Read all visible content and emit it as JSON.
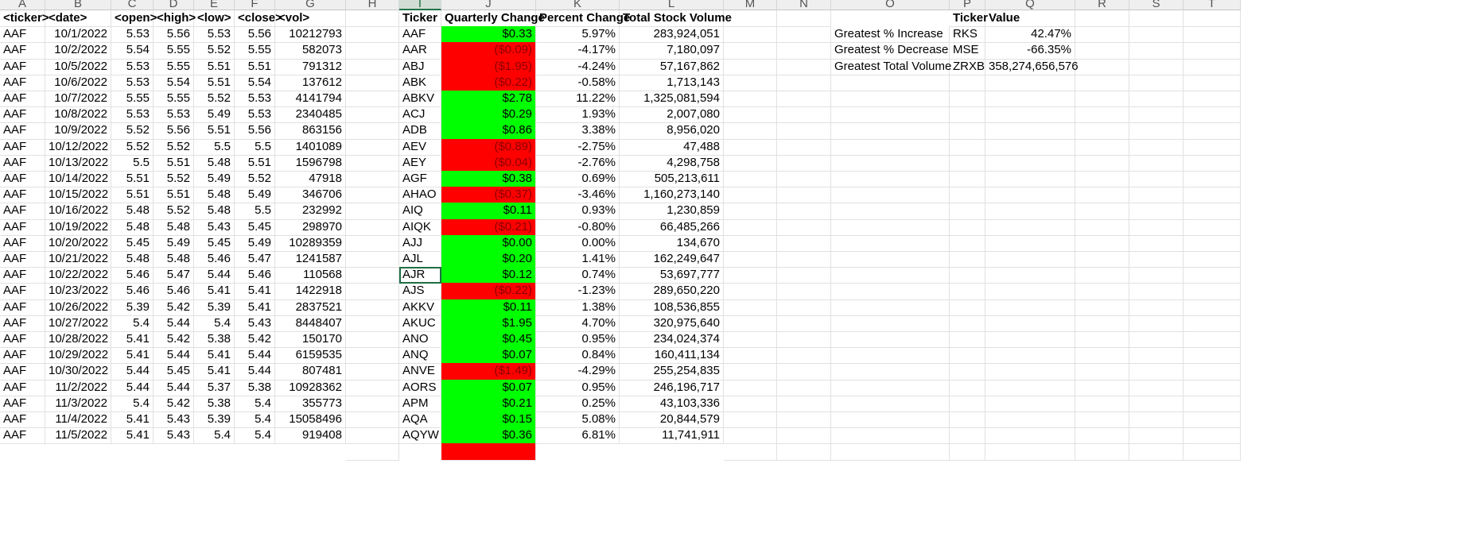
{
  "column_headers": [
    "A",
    "B",
    "C",
    "D",
    "E",
    "F",
    "G",
    "H",
    "I",
    "J",
    "K",
    "L",
    "M",
    "N",
    "O",
    "P",
    "Q",
    "R",
    "S",
    "T"
  ],
  "selected_column": "I",
  "raw_headers": [
    "<ticker>",
    "<date>",
    "<open>",
    "<high>",
    "<low>",
    "<close>",
    "<vol>"
  ],
  "raw_rows": [
    [
      "AAF",
      "10/1/2022",
      "5.53",
      "5.56",
      "5.53",
      "5.56",
      "10212793"
    ],
    [
      "AAF",
      "10/2/2022",
      "5.54",
      "5.55",
      "5.52",
      "5.55",
      "582073"
    ],
    [
      "AAF",
      "10/5/2022",
      "5.53",
      "5.55",
      "5.51",
      "5.51",
      "791312"
    ],
    [
      "AAF",
      "10/6/2022",
      "5.53",
      "5.54",
      "5.51",
      "5.54",
      "137612"
    ],
    [
      "AAF",
      "10/7/2022",
      "5.55",
      "5.55",
      "5.52",
      "5.53",
      "4141794"
    ],
    [
      "AAF",
      "10/8/2022",
      "5.53",
      "5.53",
      "5.49",
      "5.53",
      "2340485"
    ],
    [
      "AAF",
      "10/9/2022",
      "5.52",
      "5.56",
      "5.51",
      "5.56",
      "863156"
    ],
    [
      "AAF",
      "10/12/2022",
      "5.52",
      "5.52",
      "5.5",
      "5.5",
      "1401089"
    ],
    [
      "AAF",
      "10/13/2022",
      "5.5",
      "5.51",
      "5.48",
      "5.51",
      "1596798"
    ],
    [
      "AAF",
      "10/14/2022",
      "5.51",
      "5.52",
      "5.49",
      "5.52",
      "47918"
    ],
    [
      "AAF",
      "10/15/2022",
      "5.51",
      "5.51",
      "5.48",
      "5.49",
      "346706"
    ],
    [
      "AAF",
      "10/16/2022",
      "5.48",
      "5.52",
      "5.48",
      "5.5",
      "232992"
    ],
    [
      "AAF",
      "10/19/2022",
      "5.48",
      "5.48",
      "5.43",
      "5.45",
      "298970"
    ],
    [
      "AAF",
      "10/20/2022",
      "5.45",
      "5.49",
      "5.45",
      "5.49",
      "10289359"
    ],
    [
      "AAF",
      "10/21/2022",
      "5.48",
      "5.48",
      "5.46",
      "5.47",
      "1241587"
    ],
    [
      "AAF",
      "10/22/2022",
      "5.46",
      "5.47",
      "5.44",
      "5.46",
      "110568"
    ],
    [
      "AAF",
      "10/23/2022",
      "5.46",
      "5.46",
      "5.41",
      "5.41",
      "1422918"
    ],
    [
      "AAF",
      "10/26/2022",
      "5.39",
      "5.42",
      "5.39",
      "5.41",
      "2837521"
    ],
    [
      "AAF",
      "10/27/2022",
      "5.4",
      "5.44",
      "5.4",
      "5.43",
      "8448407"
    ],
    [
      "AAF",
      "10/28/2022",
      "5.41",
      "5.42",
      "5.38",
      "5.42",
      "150170"
    ],
    [
      "AAF",
      "10/29/2022",
      "5.41",
      "5.44",
      "5.41",
      "5.44",
      "6159535"
    ],
    [
      "AAF",
      "10/30/2022",
      "5.44",
      "5.45",
      "5.41",
      "5.44",
      "807481"
    ],
    [
      "AAF",
      "11/2/2022",
      "5.44",
      "5.44",
      "5.37",
      "5.38",
      "10928362"
    ],
    [
      "AAF",
      "11/3/2022",
      "5.4",
      "5.42",
      "5.38",
      "5.4",
      "355773"
    ],
    [
      "AAF",
      "11/4/2022",
      "5.41",
      "5.43",
      "5.39",
      "5.4",
      "15058496"
    ],
    [
      "AAF",
      "11/5/2022",
      "5.41",
      "5.43",
      "5.4",
      "5.4",
      "919408"
    ]
  ],
  "summary_headers": [
    "Ticker",
    "Quarterly Change",
    "Percent Change",
    "Total Stock Volume"
  ],
  "summary_rows": [
    {
      "ticker": "AAF",
      "change": "$0.33",
      "percent": "5.97%",
      "volume": "283,924,051",
      "status": "positive"
    },
    {
      "ticker": "AAR",
      "change": "($0.09)",
      "percent": "-4.17%",
      "volume": "7,180,097",
      "status": "negative"
    },
    {
      "ticker": "ABJ",
      "change": "($1.95)",
      "percent": "-4.24%",
      "volume": "57,167,862",
      "status": "negative"
    },
    {
      "ticker": "ABK",
      "change": "($0.22)",
      "percent": "-0.58%",
      "volume": "1,713,143",
      "status": "negative"
    },
    {
      "ticker": "ABKV",
      "change": "$2.78",
      "percent": "11.22%",
      "volume": "1,325,081,594",
      "status": "positive"
    },
    {
      "ticker": "ACJ",
      "change": "$0.29",
      "percent": "1.93%",
      "volume": "2,007,080",
      "status": "positive"
    },
    {
      "ticker": "ADB",
      "change": "$0.86",
      "percent": "3.38%",
      "volume": "8,956,020",
      "status": "positive"
    },
    {
      "ticker": "AEV",
      "change": "($0.89)",
      "percent": "-2.75%",
      "volume": "47,488",
      "status": "negative"
    },
    {
      "ticker": "AEY",
      "change": "($0.04)",
      "percent": "-2.76%",
      "volume": "4,298,758",
      "status": "negative"
    },
    {
      "ticker": "AGF",
      "change": "$0.38",
      "percent": "0.69%",
      "volume": "505,213,611",
      "status": "positive"
    },
    {
      "ticker": "AHAO",
      "change": "($0.37)",
      "percent": "-3.46%",
      "volume": "1,160,273,140",
      "status": "negative"
    },
    {
      "ticker": "AIQ",
      "change": "$0.11",
      "percent": "0.93%",
      "volume": "1,230,859",
      "status": "positive"
    },
    {
      "ticker": "AIQK",
      "change": "($0.21)",
      "percent": "-0.80%",
      "volume": "66,485,266",
      "status": "negative"
    },
    {
      "ticker": "AJJ",
      "change": "$0.00",
      "percent": "0.00%",
      "volume": "134,670",
      "status": "positive"
    },
    {
      "ticker": "AJL",
      "change": "$0.20",
      "percent": "1.41%",
      "volume": "162,249,647",
      "status": "positive"
    },
    {
      "ticker": "AJR",
      "change": "$0.12",
      "percent": "0.74%",
      "volume": "53,697,777",
      "status": "positive"
    },
    {
      "ticker": "AJS",
      "change": "($0.22)",
      "percent": "-1.23%",
      "volume": "289,650,220",
      "status": "negative"
    },
    {
      "ticker": "AKKV",
      "change": "$0.11",
      "percent": "1.38%",
      "volume": "108,536,855",
      "status": "positive"
    },
    {
      "ticker": "AKUC",
      "change": "$1.95",
      "percent": "4.70%",
      "volume": "320,975,640",
      "status": "positive"
    },
    {
      "ticker": "ANO",
      "change": "$0.45",
      "percent": "0.95%",
      "volume": "234,024,374",
      "status": "positive"
    },
    {
      "ticker": "ANQ",
      "change": "$0.07",
      "percent": "0.84%",
      "volume": "160,411,134",
      "status": "positive"
    },
    {
      "ticker": "ANVE",
      "change": "($1.49)",
      "percent": "-4.29%",
      "volume": "255,254,835",
      "status": "negative"
    },
    {
      "ticker": "AORS",
      "change": "$0.07",
      "percent": "0.95%",
      "volume": "246,196,717",
      "status": "positive"
    },
    {
      "ticker": "APM",
      "change": "$0.21",
      "percent": "0.25%",
      "volume": "43,103,336",
      "status": "positive"
    },
    {
      "ticker": "AQA",
      "change": "$0.15",
      "percent": "5.08%",
      "volume": "20,844,579",
      "status": "positive"
    },
    {
      "ticker": "AQYW",
      "change": "$0.36",
      "percent": "6.81%",
      "volume": "11,741,911",
      "status": "positive"
    }
  ],
  "greatest_headers": [
    "Ticker",
    "Value"
  ],
  "greatest_rows": [
    {
      "label": "Greatest % Increase",
      "ticker": "RKS",
      "value": "42.47%"
    },
    {
      "label": "Greatest % Decrease",
      "ticker": "MSE",
      "value": "-66.35%"
    },
    {
      "label": "Greatest Total Volume",
      "ticker": "ZRXB",
      "value": "358,274,656,576"
    }
  ],
  "active_cell": {
    "column": "I",
    "row_index": 15
  },
  "colors": {
    "positive": "#00ff00",
    "negative": "#ff0000",
    "selection": "#217346"
  }
}
